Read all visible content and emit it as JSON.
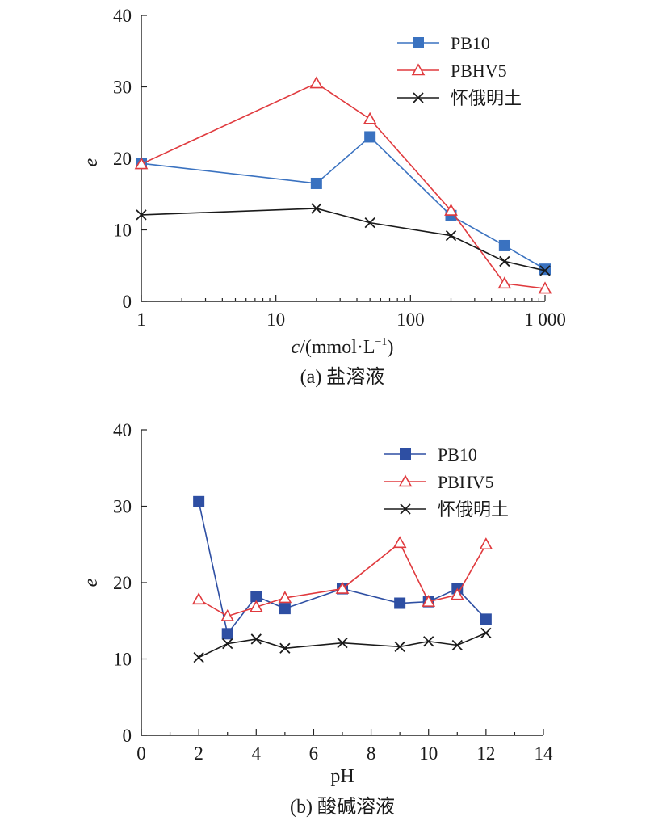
{
  "chart_data": [
    {
      "type": "line",
      "caption": "(a) 盐溶液",
      "xlabel_italic": "c",
      "xlabel_rest": "/(mmol·L",
      "xlabel_sup": "−1",
      "xlabel_close": ")",
      "ylabel": "e",
      "xscale": "log",
      "xlim": [
        1,
        1000
      ],
      "ylim": [
        0,
        40
      ],
      "xticks": [
        1,
        10,
        100,
        1000
      ],
      "xtick_labels": [
        "1",
        "10",
        "100",
        "1 000"
      ],
      "yticks": [
        0,
        10,
        20,
        30,
        40
      ],
      "ytick_labels": [
        "0",
        "10",
        "20",
        "30",
        "40"
      ],
      "legend_position": "top-right",
      "series": [
        {
          "name": "PB10",
          "color": "#3a72c0",
          "marker": "square",
          "x": [
            1,
            20,
            50,
            200,
            500,
            1000
          ],
          "y": [
            19.3,
            16.5,
            23.0,
            12.0,
            7.8,
            4.5
          ]
        },
        {
          "name": "PBHV5",
          "color": "#e03a3e",
          "marker": "triangle",
          "x": [
            1,
            20,
            50,
            200,
            500,
            1000
          ],
          "y": [
            19.2,
            30.5,
            25.5,
            12.7,
            2.5,
            1.8
          ]
        },
        {
          "name": "怀俄明土",
          "color": "#1a1a1a",
          "marker": "x",
          "x": [
            1,
            20,
            50,
            200,
            500,
            1000
          ],
          "y": [
            12.1,
            13.0,
            11.0,
            9.2,
            5.6,
            4.3
          ]
        }
      ]
    },
    {
      "type": "line",
      "caption": "(b) 酸碱溶液",
      "xlabel": "pH",
      "ylabel": "e",
      "xscale": "linear",
      "xlim": [
        0,
        14
      ],
      "ylim": [
        0,
        40
      ],
      "xticks": [
        0,
        2,
        4,
        6,
        8,
        10,
        12,
        14
      ],
      "xtick_labels": [
        "0",
        "2",
        "4",
        "6",
        "8",
        "10",
        "12",
        "14"
      ],
      "xminor": [
        1,
        3,
        5,
        7,
        9,
        11,
        13
      ],
      "yticks": [
        0,
        10,
        20,
        30,
        40
      ],
      "ytick_labels": [
        "0",
        "10",
        "20",
        "30",
        "40"
      ],
      "legend_position": "top-right",
      "series": [
        {
          "name": "PB10",
          "color": "#2e4fa3",
          "marker": "square",
          "x": [
            2,
            3,
            4,
            5,
            7,
            9,
            10,
            11,
            12
          ],
          "y": [
            30.6,
            13.3,
            18.2,
            16.6,
            19.2,
            17.3,
            17.5,
            19.2,
            15.2
          ]
        },
        {
          "name": "PBHV5",
          "color": "#e03a3e",
          "marker": "triangle",
          "x": [
            2,
            3,
            4,
            5,
            7,
            9,
            10,
            11,
            12
          ],
          "y": [
            17.8,
            15.6,
            16.8,
            18.0,
            19.2,
            25.2,
            17.5,
            18.4,
            25.0
          ]
        },
        {
          "name": "怀俄明土",
          "color": "#1a1a1a",
          "marker": "x",
          "x": [
            2,
            3,
            4,
            5,
            7,
            9,
            10,
            11,
            12
          ],
          "y": [
            10.2,
            12.0,
            12.6,
            11.4,
            12.1,
            11.6,
            12.3,
            11.8,
            13.4
          ]
        }
      ]
    }
  ]
}
